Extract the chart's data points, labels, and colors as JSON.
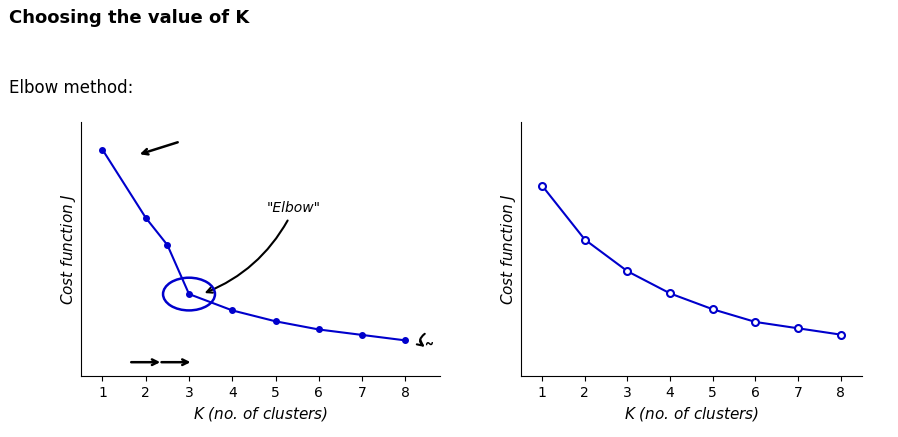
{
  "title": "Choosing the value of K",
  "subtitle": "Elbow method:",
  "line_color": "#0000cc",
  "bg_color": "#ffffff",
  "left_x": [
    1,
    2,
    2.5,
    3,
    4,
    5,
    6,
    7,
    8
  ],
  "left_y": [
    8.5,
    6.0,
    5.0,
    3.2,
    2.6,
    2.2,
    1.9,
    1.7,
    1.5
  ],
  "right_x": [
    1,
    2,
    3,
    4,
    5,
    6,
    7,
    8
  ],
  "right_y": [
    7.5,
    5.8,
    4.8,
    4.1,
    3.6,
    3.2,
    3.0,
    2.8
  ],
  "xlabel": "$K$ (no. of clusters)",
  "ylabel": "Cost function $J$",
  "title_fontsize": 13,
  "subtitle_fontsize": 12,
  "axis_label_fontsize": 11
}
